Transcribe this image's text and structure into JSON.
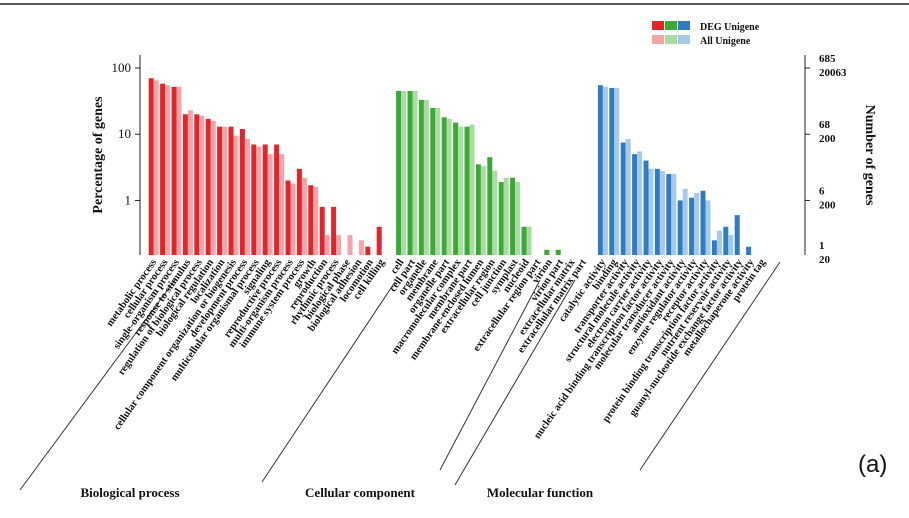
{
  "chart_data": {
    "type": "grouped_bar",
    "ylabel": "Percentage of genes",
    "y2label": "Number of genes",
    "log_scale": true,
    "ylim": [
      0.15,
      100
    ],
    "yticks": [
      100,
      10,
      1
    ],
    "y2_labels": {
      "deg": [
        "685",
        "68",
        "6",
        "1"
      ],
      "all": [
        "20063",
        "200",
        "200",
        "20"
      ]
    },
    "legend": [
      {
        "name": "DEG Unigene"
      },
      {
        "name": "All Unigene"
      }
    ],
    "panel_label": "(a)",
    "groups": [
      {
        "name": "Biological process",
        "colors": {
          "deg": "#e3242b",
          "all": "#f4a3a6"
        },
        "categories": [
          "metabolic process",
          "cellular process",
          "single-organism process",
          "response to stimulus",
          "regulation of biological process",
          "biological regulation",
          "localization",
          "cellular component organization or biogenesis",
          "development process",
          "multicellular organismal process",
          "signaling",
          "reproductive process",
          "multi-organism process",
          "immune system process",
          "growth",
          "reproduction",
          "rhythmic process",
          "biological phase",
          "biological adhesion",
          "locomotion",
          "cell killing"
        ],
        "deg": [
          70,
          58,
          52,
          20,
          20,
          17,
          13,
          13,
          12,
          7,
          7,
          7,
          2,
          3,
          1.7,
          0.8,
          0.8,
          null,
          null,
          0.2,
          0.4
        ],
        "all": [
          65,
          55,
          52,
          23,
          19,
          16,
          13,
          9.5,
          8.5,
          6.5,
          5,
          5,
          1.8,
          2.2,
          1.6,
          0.3,
          0.3,
          0.3,
          0.25,
          null,
          null
        ]
      },
      {
        "name": "Cellular component",
        "colors": {
          "deg": "#3aa935",
          "all": "#a9dba3"
        },
        "categories": [
          "cell",
          "cell part",
          "organelle",
          "membrane",
          "organelle part",
          "macromolecular complex",
          "membrane part",
          "membrane-enclosed lumen",
          "extracellular region",
          "cell junction",
          "symplast",
          "nucleoid",
          "extracellular region part",
          "virion",
          "virion part",
          "extracellular matrix",
          "extracellular matrix part"
        ],
        "deg": [
          45,
          45,
          33,
          25,
          18,
          15,
          13,
          3.5,
          4.5,
          1.9,
          2.2,
          0.4,
          null,
          0.18,
          0.18,
          null,
          null
        ],
        "all": [
          45,
          45,
          33,
          25,
          17,
          13,
          14,
          3.3,
          2.8,
          2.2,
          1.9,
          0.4,
          null,
          null,
          null,
          null,
          null
        ]
      },
      {
        "name": "Molecular function",
        "colors": {
          "deg": "#2f7cc4",
          "all": "#a7c9e8"
        },
        "categories": [
          "catalytic activity",
          "binding",
          "transporter activity",
          "structural molecule activity",
          "electron carrier activity",
          "nucleic acid binding transcription factor activity",
          "molecular transducer activity",
          "antioxidant activity",
          "enzyme regulator activity",
          "receptor activity",
          "protein binding transcription factor activity",
          "nutrient reservoir activity",
          "guanyl-nucleotide exchange factor activity",
          "metallochaperone activity",
          "protein tag"
        ],
        "deg": [
          55,
          50,
          7.5,
          5,
          4,
          3,
          2.5,
          1,
          1.1,
          1.4,
          0.25,
          0.4,
          0.6,
          0.2,
          null
        ],
        "all": [
          52,
          50,
          8.5,
          5.5,
          3,
          2.8,
          2.5,
          1.5,
          1.3,
          1,
          0.35,
          0.3,
          null,
          null,
          null
        ]
      }
    ]
  }
}
